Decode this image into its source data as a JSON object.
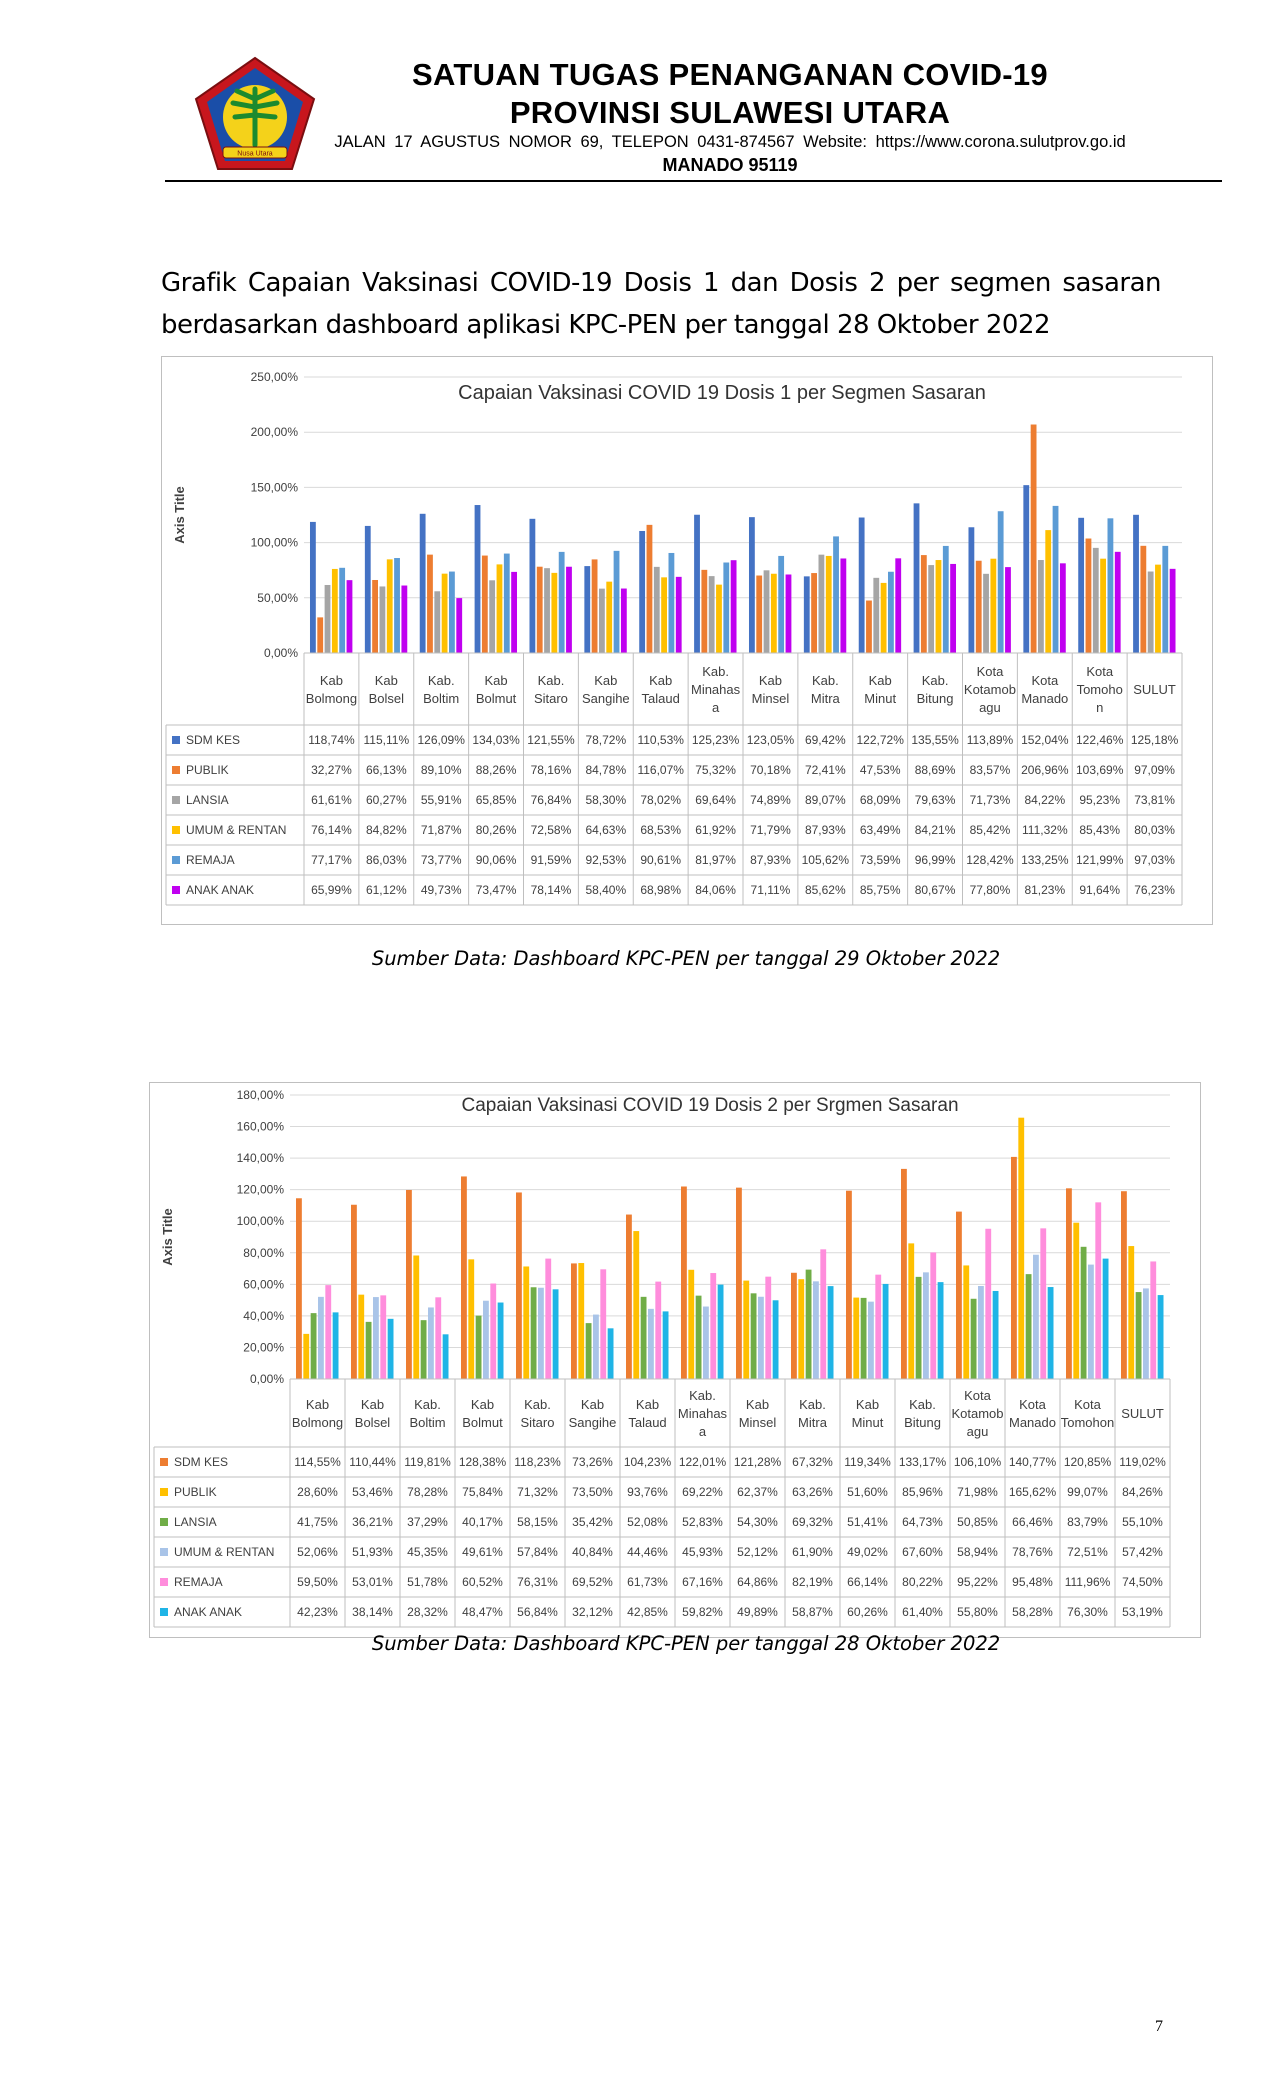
{
  "header": {
    "line1": "SATUAN TUGAS PENANGANAN COVID-19",
    "line2": "PROVINSI SULAWESI UTARA",
    "line3": "JALAN  17  AGUSTUS  NOMOR  69,  TELEPON  0431-874567  Website:  https://www.corona.sulutprov.go.id",
    "line4": "MANADO  95119",
    "logo_motto": "Nusa Utara"
  },
  "intro": "Grafik Capaian Vaksinasi COVID-19 Dosis 1 dan Dosis 2 per segmen sasaran berdasarkan dashboard aplikasi KPC-PEN per tanggal 28 Oktober 2022",
  "caption1": "Sumber Data: Dashboard KPC-PEN per tanggal 29 Oktober 2022",
  "caption2": "Sumber Data: Dashboard KPC-PEN per tanggal 28 Oktober 2022",
  "page_number": "7",
  "chart_data": [
    {
      "type": "bar",
      "title": "Capaian Vaksinasi COVID 19 Dosis 1 per Segmen Sasaran",
      "ylabel": "Axis Title",
      "ylim": [
        0,
        250
      ],
      "yticks": [
        "0,00%",
        "50,00%",
        "100,00%",
        "150,00%",
        "200,00%",
        "250,00%"
      ],
      "grid": true,
      "legend": "table-below",
      "categories": [
        [
          "Kab",
          "Bolmong"
        ],
        [
          "Kab",
          "Bolsel"
        ],
        [
          "Kab.",
          "Boltim"
        ],
        [
          "Kab",
          "Bolmut"
        ],
        [
          "Kab.",
          "Sitaro"
        ],
        [
          "Kab",
          "Sangihe"
        ],
        [
          "Kab",
          "Talaud"
        ],
        [
          "Kab.",
          "Minahas",
          "a"
        ],
        [
          "Kab",
          "Minsel"
        ],
        [
          "Kab.",
          "Mitra"
        ],
        [
          "Kab",
          "Minut"
        ],
        [
          "Kab.",
          "Bitung"
        ],
        [
          "Kota",
          "Kotamob",
          "agu"
        ],
        [
          "Kota",
          "Manado"
        ],
        [
          "Kota",
          "Tomoho",
          "n"
        ],
        [
          "SULUT"
        ]
      ],
      "series": [
        {
          "name": "SDM KES",
          "color": "#4472c4",
          "values": [
            118.74,
            115.11,
            126.09,
            134.03,
            121.55,
            78.72,
            110.53,
            125.23,
            123.05,
            69.42,
            122.72,
            135.55,
            113.89,
            152.04,
            122.46,
            125.18
          ],
          "labels": [
            "118,74%",
            "115,11%",
            "126,09%",
            "134,03%",
            "121,55%",
            "78,72%",
            "110,53%",
            "125,23%",
            "123,05%",
            "69,42%",
            "122,72%",
            "135,55%",
            "113,89%",
            "152,04%",
            "122,46%",
            "125,18%"
          ]
        },
        {
          "name": "PUBLIK",
          "color": "#ed7d31",
          "values": [
            32.27,
            66.13,
            89.1,
            88.26,
            78.16,
            84.78,
            116.07,
            75.32,
            70.18,
            72.41,
            47.53,
            88.69,
            83.57,
            206.96,
            103.69,
            97.09
          ],
          "labels": [
            "32,27%",
            "66,13%",
            "89,10%",
            "88,26%",
            "78,16%",
            "84,78%",
            "116,07%",
            "75,32%",
            "70,18%",
            "72,41%",
            "47,53%",
            "88,69%",
            "83,57%",
            "206,96%",
            "103,69%",
            "97,09%"
          ]
        },
        {
          "name": "LANSIA",
          "color": "#a5a5a5",
          "values": [
            61.61,
            60.27,
            55.91,
            65.85,
            76.84,
            58.3,
            78.02,
            69.64,
            74.89,
            89.07,
            68.09,
            79.63,
            71.73,
            84.22,
            95.23,
            73.81
          ],
          "labels": [
            "61,61%",
            "60,27%",
            "55,91%",
            "65,85%",
            "76,84%",
            "58,30%",
            "78,02%",
            "69,64%",
            "74,89%",
            "89,07%",
            "68,09%",
            "79,63%",
            "71,73%",
            "84,22%",
            "95,23%",
            "73,81%"
          ]
        },
        {
          "name": "UMUM & RENTAN",
          "color": "#ffc000",
          "values": [
            76.14,
            84.82,
            71.87,
            80.26,
            72.58,
            64.63,
            68.53,
            61.92,
            71.79,
            87.93,
            63.49,
            84.21,
            85.42,
            111.32,
            85.43,
            80.03
          ],
          "labels": [
            "76,14%",
            "84,82%",
            "71,87%",
            "80,26%",
            "72,58%",
            "64,63%",
            "68,53%",
            "61,92%",
            "71,79%",
            "87,93%",
            "63,49%",
            "84,21%",
            "85,42%",
            "111,32%",
            "85,43%",
            "80,03%"
          ]
        },
        {
          "name": "REMAJA",
          "color": "#5b9bd5",
          "values": [
            77.17,
            86.03,
            73.77,
            90.06,
            91.59,
            92.53,
            90.61,
            81.97,
            87.93,
            105.62,
            73.59,
            96.99,
            128.42,
            133.25,
            121.99,
            97.03
          ],
          "labels": [
            "77,17%",
            "86,03%",
            "73,77%",
            "90,06%",
            "91,59%",
            "92,53%",
            "90,61%",
            "81,97%",
            "87,93%",
            "105,62%",
            "73,59%",
            "96,99%",
            "128,42%",
            "133,25%",
            "121,99%",
            "97,03%"
          ]
        },
        {
          "name": "ANAK ANAK",
          "color": "#c000f0",
          "values": [
            65.99,
            61.12,
            49.73,
            73.47,
            78.14,
            58.4,
            68.98,
            84.06,
            71.11,
            85.62,
            85.75,
            80.67,
            77.8,
            81.23,
            91.64,
            76.23
          ],
          "labels": [
            "65,99%",
            "61,12%",
            "49,73%",
            "73,47%",
            "78,14%",
            "58,40%",
            "68,98%",
            "84,06%",
            "71,11%",
            "85,62%",
            "85,75%",
            "80,67%",
            "77,80%",
            "81,23%",
            "91,64%",
            "76,23%"
          ]
        }
      ]
    },
    {
      "type": "bar",
      "title": "Capaian Vaksinasi COVID 19 Dosis 2 per Srgmen Sasaran",
      "ylabel": "Axis Title",
      "ylim": [
        0,
        180
      ],
      "yticks": [
        "0,00%",
        "20,00%",
        "40,00%",
        "60,00%",
        "80,00%",
        "100,00%",
        "120,00%",
        "140,00%",
        "160,00%",
        "180,00%"
      ],
      "grid": true,
      "legend": "table-below",
      "categories": [
        [
          "Kab",
          "Bolmong"
        ],
        [
          "Kab",
          "Bolsel"
        ],
        [
          "Kab.",
          "Boltim"
        ],
        [
          "Kab",
          "Bolmut"
        ],
        [
          "Kab.",
          "Sitaro"
        ],
        [
          "Kab",
          "Sangihe"
        ],
        [
          "Kab",
          "Talaud"
        ],
        [
          "Kab.",
          "Minahas",
          "a"
        ],
        [
          "Kab",
          "Minsel"
        ],
        [
          "Kab.",
          "Mitra"
        ],
        [
          "Kab",
          "Minut"
        ],
        [
          "Kab.",
          "Bitung"
        ],
        [
          "Kota",
          "Kotamob",
          "agu"
        ],
        [
          "Kota",
          "Manado"
        ],
        [
          "Kota",
          "Tomohon"
        ],
        [
          "SULUT"
        ]
      ],
      "series": [
        {
          "name": "SDM KES",
          "color": "#ed7d31",
          "values": [
            114.55,
            110.44,
            119.81,
            128.38,
            118.23,
            73.26,
            104.23,
            122.01,
            121.28,
            67.32,
            119.34,
            133.17,
            106.1,
            140.77,
            120.85,
            119.02
          ],
          "labels": [
            "114,55%",
            "110,44%",
            "119,81%",
            "128,38%",
            "118,23%",
            "73,26%",
            "104,23%",
            "122,01%",
            "121,28%",
            "67,32%",
            "119,34%",
            "133,17%",
            "106,10%",
            "140,77%",
            "120,85%",
            "119,02%"
          ]
        },
        {
          "name": "PUBLIK",
          "color": "#ffc000",
          "values": [
            28.6,
            53.46,
            78.28,
            75.84,
            71.32,
            73.5,
            93.76,
            69.22,
            62.37,
            63.26,
            51.6,
            85.96,
            71.98,
            165.62,
            99.07,
            84.26
          ],
          "labels": [
            "28,60%",
            "53,46%",
            "78,28%",
            "75,84%",
            "71,32%",
            "73,50%",
            "93,76%",
            "69,22%",
            "62,37%",
            "63,26%",
            "51,60%",
            "85,96%",
            "71,98%",
            "165,62%",
            "99,07%",
            "84,26%"
          ]
        },
        {
          "name": "LANSIA",
          "color": "#70ad47",
          "values": [
            41.75,
            36.21,
            37.29,
            40.17,
            58.15,
            35.42,
            52.08,
            52.83,
            54.3,
            69.32,
            51.41,
            64.73,
            50.85,
            66.46,
            83.79,
            55.1
          ],
          "labels": [
            "41,75%",
            "36,21%",
            "37,29%",
            "40,17%",
            "58,15%",
            "35,42%",
            "52,08%",
            "52,83%",
            "54,30%",
            "69,32%",
            "51,41%",
            "64,73%",
            "50,85%",
            "66,46%",
            "83,79%",
            "55,10%"
          ]
        },
        {
          "name": "UMUM & RENTAN",
          "color": "#a9c4e8",
          "values": [
            52.06,
            51.93,
            45.35,
            49.61,
            57.84,
            40.84,
            44.46,
            45.93,
            52.12,
            61.9,
            49.02,
            67.6,
            58.94,
            78.76,
            72.51,
            57.42
          ],
          "labels": [
            "52,06%",
            "51,93%",
            "45,35%",
            "49,61%",
            "57,84%",
            "40,84%",
            "44,46%",
            "45,93%",
            "52,12%",
            "61,90%",
            "49,02%",
            "67,60%",
            "58,94%",
            "78,76%",
            "72,51%",
            "57,42%"
          ]
        },
        {
          "name": "REMAJA",
          "color": "#ff8ddc",
          "values": [
            59.5,
            53.01,
            51.78,
            60.52,
            76.31,
            69.52,
            61.73,
            67.16,
            64.86,
            82.19,
            66.14,
            80.22,
            95.22,
            95.48,
            111.96,
            74.5
          ],
          "labels": [
            "59,50%",
            "53,01%",
            "51,78%",
            "60,52%",
            "76,31%",
            "69,52%",
            "61,73%",
            "67,16%",
            "64,86%",
            "82,19%",
            "66,14%",
            "80,22%",
            "95,22%",
            "95,48%",
            "111,96%",
            "74,50%"
          ]
        },
        {
          "name": "ANAK ANAK",
          "color": "#1fb4e6",
          "values": [
            42.23,
            38.14,
            28.32,
            48.47,
            56.84,
            32.12,
            42.85,
            59.82,
            49.89,
            58.87,
            60.26,
            61.4,
            55.8,
            58.28,
            76.3,
            53.19
          ],
          "labels": [
            "42,23%",
            "38,14%",
            "28,32%",
            "48,47%",
            "56,84%",
            "32,12%",
            "42,85%",
            "59,82%",
            "49,89%",
            "58,87%",
            "60,26%",
            "61,40%",
            "55,80%",
            "58,28%",
            "76,30%",
            "53,19%"
          ]
        }
      ]
    }
  ]
}
